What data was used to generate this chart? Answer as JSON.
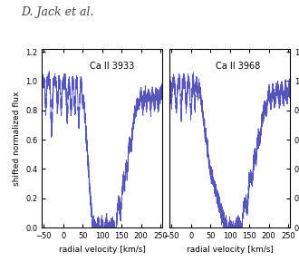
{
  "title": "D. Jack et al.",
  "label1": "Ca II 3933",
  "label2": "Ca II 3968",
  "xlabel": "radial velocity [km/s]",
  "ylabel": "shifted normalized flux",
  "xlim": [
    -55,
    255
  ],
  "ylim": [
    0.0,
    1.22
  ],
  "yticks": [
    0.0,
    0.2,
    0.4,
    0.6,
    0.8,
    1.0,
    1.2
  ],
  "xticks": [
    -50,
    0,
    50,
    100,
    150,
    200,
    250
  ],
  "line_color": "#5555bb",
  "background_color": "#ffffff",
  "title_fontsize": 9,
  "label_fontsize": 6.5,
  "tick_fontsize": 6,
  "annotation_fontsize": 7
}
